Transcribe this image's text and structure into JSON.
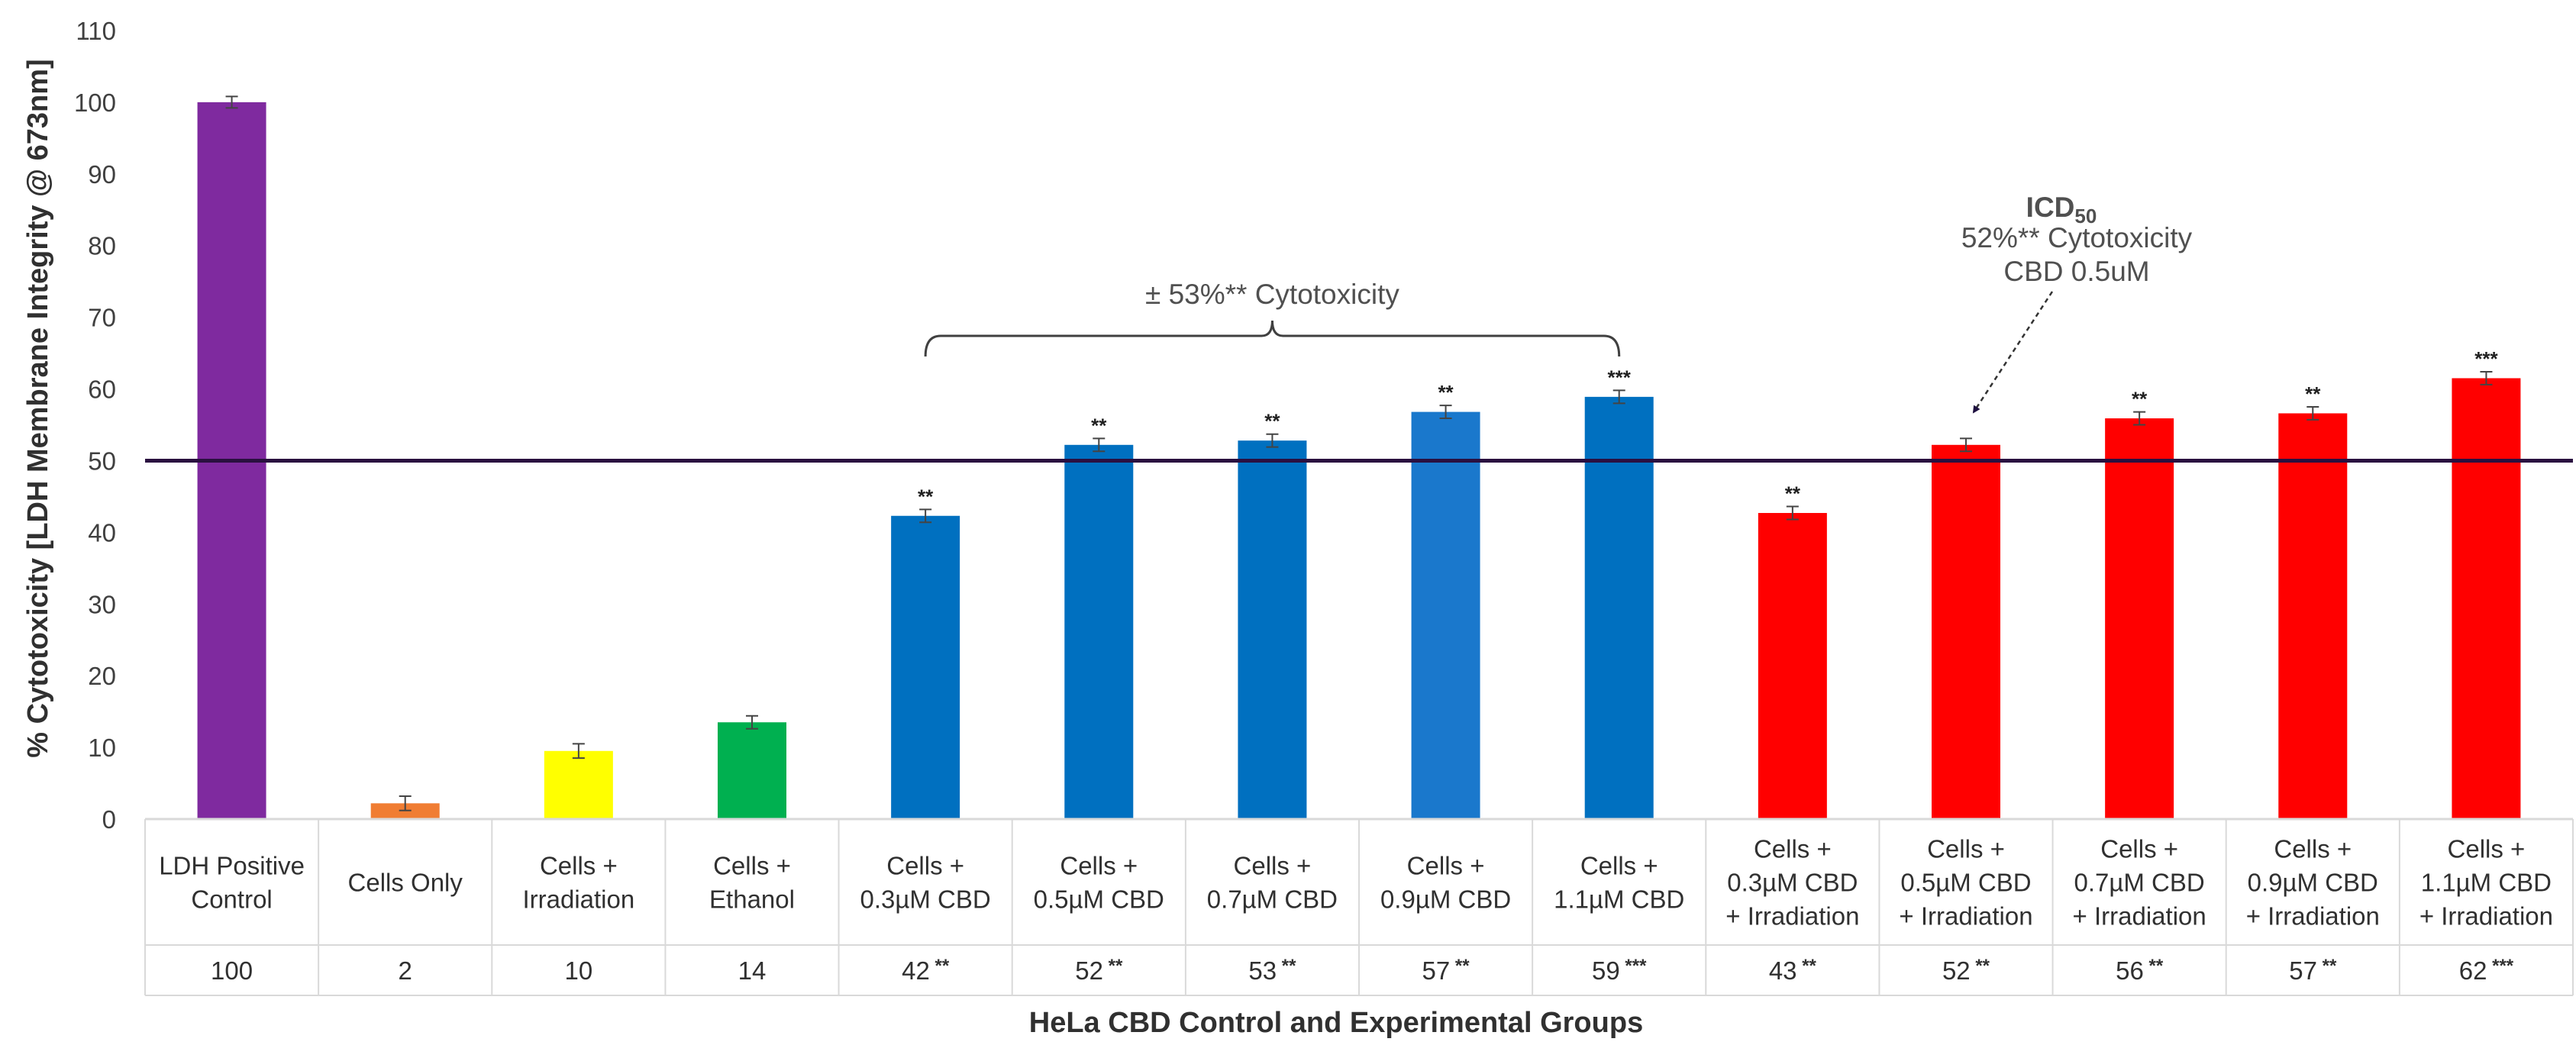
{
  "chart_data": {
    "type": "bar",
    "title": "",
    "xlabel": "HeLa CBD Control and Experimental Groups",
    "ylabel": "% Cytotoxicity [LDH Membrane Integrity @ 673nm]",
    "ylim": [
      0,
      110
    ],
    "yticks": [
      0,
      10,
      20,
      30,
      40,
      50,
      60,
      70,
      80,
      90,
      100,
      110
    ],
    "grid": false,
    "categories": [
      [
        "LDH Positive",
        "Control"
      ],
      [
        "Cells Only"
      ],
      [
        "Cells +",
        "Irradiation"
      ],
      [
        "Cells +",
        "Ethanol"
      ],
      [
        "Cells +",
        "0.3µM CBD"
      ],
      [
        "Cells +",
        "0.5µM CBD"
      ],
      [
        "Cells +",
        "0.7µM CBD"
      ],
      [
        "Cells +",
        "0.9µM CBD"
      ],
      [
        "Cells +",
        "1.1µM CBD"
      ],
      [
        "Cells +",
        "0.3µM CBD",
        "+ Irradiation"
      ],
      [
        "Cells +",
        "0.5µM CBD",
        "+ Irradiation"
      ],
      [
        "Cells +",
        "0.7µM CBD",
        "+ Irradiation"
      ],
      [
        "Cells +",
        "0.9µM CBD",
        "+ Irradiation"
      ],
      [
        "Cells +",
        "1.1µM CBD",
        "+ Irradiation"
      ]
    ],
    "values": [
      100,
      2.2,
      9.5,
      13.5,
      42.3,
      52.2,
      52.8,
      56.8,
      58.9,
      42.7,
      52.2,
      55.9,
      56.6,
      61.5
    ],
    "errors": [
      0.8,
      1.0,
      1.0,
      0.9,
      0.9,
      0.9,
      0.9,
      0.9,
      0.9,
      0.9,
      0.9,
      0.9,
      0.9,
      0.9
    ],
    "colors": [
      "#7f2a9f",
      "#f07d33",
      "#ffff00",
      "#00b050",
      "#0070c0",
      "#0070c0",
      "#0070c0",
      "#1a78cc",
      "#0070c0",
      "#ff0000",
      "#ff0000",
      "#ff0000",
      "#ff0000",
      "#ff0000"
    ],
    "significance": [
      "",
      "",
      "",
      "",
      "**",
      "**",
      "**",
      "**",
      "***",
      "**",
      "",
      "**",
      "**",
      "***"
    ],
    "table_values": [
      "100",
      "2",
      "10",
      "14",
      "42",
      "52",
      "53",
      "57",
      "59",
      "43",
      "52",
      "56",
      "57",
      "62"
    ],
    "table_marks": [
      "",
      "",
      "",
      "",
      "**",
      "**",
      "**",
      "**",
      "***",
      "**",
      "**",
      "**",
      "**",
      "***"
    ],
    "reference_line": {
      "y": 50,
      "color": "#2a1040"
    },
    "annotations": {
      "bracket_label": "± 53%** Cytotoxicity",
      "bracket_from": 4,
      "bracket_to": 8,
      "icd_title": "ICD",
      "icd_subscript": "50",
      "icd_line2": "52%** Cytotoxicity",
      "icd_line3": "CBD 0.5uM",
      "icd_target": 10
    }
  }
}
